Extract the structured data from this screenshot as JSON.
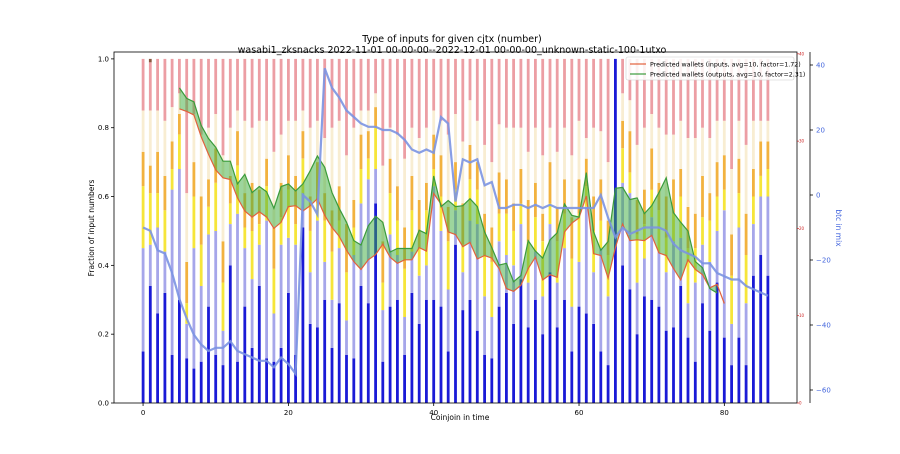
{
  "chart_data": {
    "type": "bar",
    "title": "Type of inputs for given cjtx (number)",
    "subtitle": "wasabi1_zksnacks 2022-11-01 00-00-00--2022-12-01 00-00-00_unknown-static-100-1utxo",
    "xlabel": "Coinjoin in time",
    "ylabel": "Fraction of input numbers",
    "y2label": "btc in mix",
    "xlim": [
      -4,
      90
    ],
    "ylim": [
      0,
      1.02
    ],
    "y2lim": [
      -64,
      44
    ],
    "x_ticks": [
      "0",
      "20",
      "40",
      "60",
      "80"
    ],
    "y_ticks": [
      "0.0",
      "0.2",
      "0.4",
      "0.6",
      "0.8",
      "1.0"
    ],
    "y2_ticks": [
      "−60",
      "−40",
      "−20",
      "0",
      "20",
      "40"
    ],
    "y3_ticks": [
      "0",
      "10",
      "20",
      "30",
      "40"
    ],
    "colors": {
      "fresh": "#1a1ad6",
      "remix_light": "#a6a6ea",
      "friends": "#f6e53a",
      "other": "#f2b23f",
      "pale": "#f8edd2",
      "red": "#ec9ea4",
      "dark": "#8a5840",
      "inputs_line": "#e2613b",
      "outputs_line": "#3b9b3b",
      "band": "#3bab3b",
      "btc_line": "#7b94e2"
    },
    "legend": {
      "position": "top-right",
      "entries": [
        "Predicted wallets (inputs, avg=10, factor=1.72)",
        "Predicted wallets (outputs, avg=10, factor=2.31)"
      ]
    },
    "stacked_fractions": {
      "x": [
        0,
        1,
        2,
        3,
        4,
        5,
        6,
        7,
        8,
        9,
        10,
        11,
        12,
        13,
        14,
        15,
        16,
        17,
        18,
        19,
        20,
        21,
        22,
        23,
        24,
        25,
        26,
        27,
        28,
        29,
        30,
        31,
        32,
        33,
        34,
        35,
        36,
        37,
        38,
        39,
        40,
        41,
        42,
        43,
        44,
        45,
        46,
        47,
        48,
        49,
        50,
        51,
        52,
        53,
        54,
        55,
        56,
        57,
        58,
        59,
        60,
        61,
        62,
        63,
        64,
        65,
        66,
        67,
        68,
        69,
        70,
        71,
        72,
        73,
        74,
        75,
        76,
        77,
        78,
        79,
        80,
        81,
        82,
        83,
        84,
        85,
        86
      ],
      "fresh": [
        0.15,
        0.34,
        0.26,
        0.32,
        0.14,
        0.3,
        0.13,
        0.1,
        0.12,
        0.28,
        0.14,
        0.11,
        0.4,
        0.12,
        0.28,
        0.16,
        0.34,
        0.13,
        0.12,
        0.16,
        0.32,
        0.14,
        0.51,
        0.23,
        0.22,
        0.3,
        0.16,
        0.29,
        0.14,
        0.13,
        0.34,
        0.29,
        0.58,
        0.12,
        0.28,
        0.3,
        0.14,
        0.32,
        0.23,
        0.3,
        0.3,
        0.28,
        0.15,
        0.46,
        0.27,
        0.3,
        0.21,
        0.14,
        0.13,
        0.28,
        0.32,
        0.23,
        0.36,
        0.22,
        0.3,
        0.2,
        0.38,
        0.22,
        0.3,
        0.15,
        0.28,
        0.26,
        0.23,
        0.15,
        0.11,
        1.0,
        0.4,
        0.33,
        0.2,
        0.31,
        0.3,
        0.28,
        0.21,
        0.22,
        0.34,
        0.19,
        0.12,
        0.29,
        0.21,
        0.35,
        0.19,
        0.11,
        0.19,
        0.11,
        0.37,
        0.43,
        0.37
      ],
      "remix": [
        0.3,
        0.12,
        0.25,
        0.12,
        0.48,
        0.38,
        0.1,
        0.35,
        0.22,
        0.21,
        0.36,
        0.1,
        0.12,
        0.43,
        0.17,
        0.2,
        0.12,
        0.4,
        0.14,
        0.3,
        0.16,
        0.32,
        0.1,
        0.15,
        0.31,
        0.11,
        0.14,
        0.16,
        0.1,
        0.3,
        0.24,
        0.36,
        0.1,
        0.15,
        0.21,
        0.13,
        0.11,
        0.12,
        0.14,
        0.1,
        0.33,
        0.22,
        0.18,
        0.1,
        0.11,
        0.23,
        0.31,
        0.17,
        0.12,
        0.19,
        0.11,
        0.17,
        0.16,
        0.13,
        0.14,
        0.11,
        0.14,
        0.13,
        0.15,
        0.13,
        0.13,
        0.31,
        0.15,
        0.3,
        0.2,
        0.0,
        0.24,
        0.28,
        0.15,
        0.11,
        0.24,
        0.16,
        0.17,
        0.25,
        0.14,
        0.1,
        0.23,
        0.17,
        0.2,
        0.15,
        0.37,
        0.12,
        0.32,
        0.18,
        0.15,
        0.17,
        0.23
      ],
      "friends": [
        0.18,
        0.15,
        0.1,
        0.12,
        0.06,
        0.1,
        0.06,
        0.15,
        0.12,
        0.08,
        0.14,
        0.14,
        0.06,
        0.14,
        0.06,
        0.14,
        0.06,
        0.1,
        0.13,
        0.08,
        0.14,
        0.06,
        0.1,
        0.12,
        0.05,
        0.12,
        0.14,
        0.08,
        0.14,
        0.08,
        0.1,
        0.06,
        0.12,
        0.08,
        0.12,
        0.1,
        0.14,
        0.12,
        0.08,
        0.16,
        0.05,
        0.1,
        0.14,
        0.06,
        0.08,
        0.12,
        0.1,
        0.12,
        0.16,
        0.08,
        0.12,
        0.1,
        0.06,
        0.12,
        0.1,
        0.16,
        0.06,
        0.12,
        0.1,
        0.14,
        0.14,
        0.06,
        0.12,
        0.08,
        0.12,
        0.0,
        0.1,
        0.06,
        0.14,
        0.1,
        0.08,
        0.12,
        0.1,
        0.08,
        0.12,
        0.16,
        0.1,
        0.08,
        0.12,
        0.1,
        0.06,
        0.14,
        0.1,
        0.14,
        0.08,
        0.06,
        0.08
      ],
      "other": [
        0.1,
        0.08,
        0.12,
        0.1,
        0.08,
        0.06,
        0.12,
        0.1,
        0.14,
        0.08,
        0.1,
        0.12,
        0.08,
        0.1,
        0.1,
        0.14,
        0.1,
        0.08,
        0.12,
        0.1,
        0.1,
        0.14,
        0.08,
        0.1,
        0.12,
        0.08,
        0.12,
        0.1,
        0.14,
        0.08,
        0.1,
        0.08,
        0.06,
        0.12,
        0.1,
        0.1,
        0.12,
        0.1,
        0.14,
        0.08,
        0.1,
        0.12,
        0.1,
        0.08,
        0.12,
        0.1,
        0.08,
        0.12,
        0.1,
        0.12,
        0.1,
        0.08,
        0.1,
        0.12,
        0.1,
        0.08,
        0.12,
        0.1,
        0.1,
        0.12,
        0.1,
        0.08,
        0.1,
        0.12,
        0.1,
        0.0,
        0.08,
        0.12,
        0.1,
        0.1,
        0.12,
        0.08,
        0.12,
        0.1,
        0.08,
        0.12,
        0.1,
        0.12,
        0.08,
        0.1,
        0.1,
        0.12,
        0.1,
        0.12,
        0.08,
        0.1,
        0.08
      ],
      "pale": [
        0.12,
        0.16,
        0.12,
        0.16,
        0.1,
        0.06,
        0.2,
        0.14,
        0.18,
        0.15,
        0.1,
        0.25,
        0.14,
        0.06,
        0.21,
        0.16,
        0.2,
        0.11,
        0.22,
        0.14,
        0.1,
        0.16,
        0.06,
        0.2,
        0.12,
        0.16,
        0.24,
        0.19,
        0.2,
        0.21,
        0.07,
        0.06,
        0.04,
        0.22,
        0.09,
        0.15,
        0.2,
        0.14,
        0.18,
        0.16,
        0.07,
        0.1,
        0.21,
        0.14,
        0.18,
        0.13,
        0.12,
        0.2,
        0.19,
        0.14,
        0.15,
        0.22,
        0.12,
        0.14,
        0.16,
        0.17,
        0.1,
        0.16,
        0.15,
        0.18,
        0.17,
        0.06,
        0.2,
        0.14,
        0.17,
        0.0,
        0.08,
        0.09,
        0.16,
        0.18,
        0.1,
        0.16,
        0.18,
        0.13,
        0.14,
        0.2,
        0.22,
        0.14,
        0.16,
        0.12,
        0.1,
        0.19,
        0.11,
        0.2,
        0.14,
        0.06,
        0.06
      ],
      "red": [
        0.15,
        0.14,
        0.15,
        0.18,
        0.14,
        0.1,
        0.39,
        0.16,
        0.22,
        0.2,
        0.16,
        0.28,
        0.2,
        0.15,
        0.18,
        0.2,
        0.18,
        0.18,
        0.27,
        0.22,
        0.18,
        0.18,
        0.15,
        0.2,
        0.18,
        0.23,
        0.2,
        0.18,
        0.28,
        0.2,
        0.15,
        0.15,
        0.1,
        0.31,
        0.2,
        0.22,
        0.29,
        0.2,
        0.23,
        0.2,
        0.15,
        0.18,
        0.22,
        0.16,
        0.24,
        0.12,
        0.18,
        0.25,
        0.3,
        0.19,
        0.2,
        0.2,
        0.2,
        0.27,
        0.2,
        0.28,
        0.2,
        0.27,
        0.2,
        0.28,
        0.28,
        0.23,
        0.2,
        0.21,
        0.3,
        0.0,
        0.1,
        0.12,
        0.25,
        0.2,
        0.16,
        0.2,
        0.22,
        0.22,
        0.18,
        0.23,
        0.23,
        0.2,
        0.23,
        0.18,
        0.18,
        0.32,
        0.18,
        0.25,
        0.18,
        0.18,
        0.18
      ],
      "dark": [
        0,
        0.015,
        0,
        0,
        0,
        0.02,
        0,
        0,
        0,
        0,
        0,
        0,
        0,
        0,
        0,
        0,
        0,
        0,
        0,
        0,
        0,
        0,
        0,
        0,
        0,
        0,
        0,
        0,
        0,
        0,
        0,
        0,
        0,
        0,
        0,
        0,
        0,
        0,
        0,
        0,
        0,
        0,
        0,
        0,
        0,
        0,
        0,
        0,
        0,
        0,
        0,
        0,
        0,
        0,
        0,
        0,
        0,
        0,
        0,
        0,
        0,
        0,
        0,
        0,
        0,
        0,
        0,
        0,
        0,
        0,
        0,
        0,
        0,
        0,
        0,
        0,
        0,
        0,
        0,
        0,
        0,
        0,
        0,
        0,
        0,
        0,
        0
      ]
    },
    "series": [
      {
        "name": "Predicted wallets (inputs, avg=10, factor=1.72)",
        "axis": "right-red",
        "x": [
          5,
          6,
          7,
          8,
          9,
          10,
          11,
          12,
          13,
          14,
          15,
          16,
          17,
          18,
          19,
          20,
          21,
          22,
          23,
          24,
          25,
          26,
          27,
          28,
          29,
          30,
          31,
          32,
          33,
          34,
          35,
          36,
          37,
          38,
          39,
          40,
          41,
          42,
          43,
          44,
          45,
          46,
          47,
          48,
          49,
          50,
          51,
          52,
          53,
          54,
          55,
          56,
          57,
          58,
          59,
          60,
          61,
          62,
          63,
          64,
          65,
          66,
          67,
          68,
          69,
          70,
          71,
          72,
          73,
          74,
          75,
          76,
          77,
          78,
          79,
          80
        ],
        "y": [
          33.7,
          33.4,
          33,
          30.5,
          28.5,
          26.7,
          25.8,
          25.6,
          23.5,
          22,
          21.3,
          21.9,
          21.3,
          20,
          20.7,
          22.5,
          22.6,
          22,
          22.6,
          23.4,
          21.5,
          20.1,
          19.1,
          17.5,
          16.2,
          15.3,
          16.4,
          17,
          18.2,
          16.7,
          16,
          16.4,
          16.4,
          17.8,
          17.4,
          24,
          22.8,
          19.6,
          19.3,
          17.9,
          18.4,
          16.5,
          16.9,
          16.6,
          15.4,
          13.1,
          12.8,
          13.5,
          15.4,
          16.7,
          14.1,
          14.7,
          14.4,
          19.6,
          20.6,
          21.2,
          23.7,
          17.1,
          16.9,
          14.3,
          17.8,
          20.5,
          18.6,
          18.7,
          18.6,
          19.2,
          17.2,
          16.9,
          15.4,
          14.1,
          16.4,
          15.3,
          14.7,
          13.2,
          13.6,
          11.4
        ]
      },
      {
        "name": "Predicted wallets (outputs, avg=10, factor=2.31)",
        "axis": "right-red",
        "x": [
          5,
          6,
          7,
          8,
          9,
          10,
          11,
          12,
          13,
          14,
          15,
          16,
          17,
          18,
          19,
          20,
          21,
          22,
          23,
          24,
          25,
          26,
          27,
          28,
          29,
          30,
          31,
          32,
          33,
          34,
          35,
          36,
          37,
          38,
          39,
          40,
          41,
          42,
          43,
          44,
          45,
          46,
          47,
          48,
          49,
          50,
          51,
          52,
          53,
          54,
          55,
          56,
          57,
          58,
          59,
          60,
          61,
          62,
          63,
          64,
          65,
          66,
          67,
          68,
          69,
          70,
          71,
          72,
          73,
          74,
          75,
          76,
          77,
          78,
          79
        ],
        "y": [
          36.1,
          34.9,
          34.5,
          31.8,
          30.3,
          29.3,
          27.7,
          27.7,
          25.1,
          26.2,
          24.1,
          24.8,
          24.2,
          22.3,
          24.8,
          25.1,
          24.3,
          25.1,
          26.6,
          28.3,
          27,
          24.1,
          22.3,
          20.7,
          18.6,
          18.1,
          20.3,
          21.4,
          20.7,
          17.3,
          17.7,
          17.7,
          17.7,
          19.8,
          19.4,
          26,
          22.5,
          23.2,
          22.5,
          22.6,
          23.4,
          22.5,
          19.6,
          17.8,
          15.8,
          16,
          13.9,
          14.6,
          18.6,
          17.4,
          16.6,
          18.7,
          19.5,
          22.8,
          21.5,
          21.3,
          26.4,
          19.6,
          17.5,
          18.5,
          24.6,
          24.7,
          23.3,
          23.5,
          21.7,
          22.6,
          24.1,
          25.8,
          21.8,
          20.7,
          19.7,
          16.2,
          15.5,
          13.1,
          12.6
        ]
      },
      {
        "name": "btc in mix",
        "axis": "right-blue",
        "x": [
          0,
          1,
          2,
          3,
          4,
          5,
          6,
          7,
          8,
          9,
          10,
          11,
          12,
          13,
          14,
          15,
          16,
          17,
          18,
          19,
          20,
          21,
          22,
          23,
          24,
          25,
          26,
          27,
          28,
          29,
          30,
          31,
          32,
          33,
          34,
          35,
          36,
          37,
          38,
          39,
          40,
          41,
          42,
          43,
          44,
          45,
          46,
          47,
          48,
          49,
          50,
          51,
          52,
          53,
          54,
          55,
          56,
          57,
          58,
          59,
          60,
          61,
          62,
          63,
          64,
          65,
          66,
          67,
          68,
          69,
          70,
          71,
          72,
          73,
          74,
          75,
          76,
          77,
          78,
          79,
          80,
          81,
          82,
          83,
          84,
          85,
          86
        ],
        "y": [
          -10,
          -11,
          -17,
          -18,
          -24,
          -32,
          -38,
          -43,
          -46,
          -48,
          -47,
          -47,
          -45,
          -48,
          -49,
          -50,
          -51,
          -51,
          -53,
          -50,
          -52,
          -55,
          0,
          -2,
          -6,
          39,
          33,
          30,
          26,
          24,
          22,
          21,
          21,
          20,
          20,
          19,
          17,
          14,
          13,
          14,
          13,
          24,
          22,
          -2,
          11,
          10,
          11,
          3,
          4,
          -4,
          -4,
          -3,
          -3,
          -4,
          -3,
          -4,
          -3,
          -4,
          -4,
          -4,
          -4,
          -4,
          -4,
          0,
          -7,
          -13,
          -10,
          -12,
          -11,
          -10,
          -10,
          -10,
          -11,
          -15,
          -17,
          -18,
          -19,
          -21,
          -21,
          -24,
          -25,
          -26,
          -26,
          -28,
          -29,
          -30,
          -31
        ]
      }
    ]
  }
}
